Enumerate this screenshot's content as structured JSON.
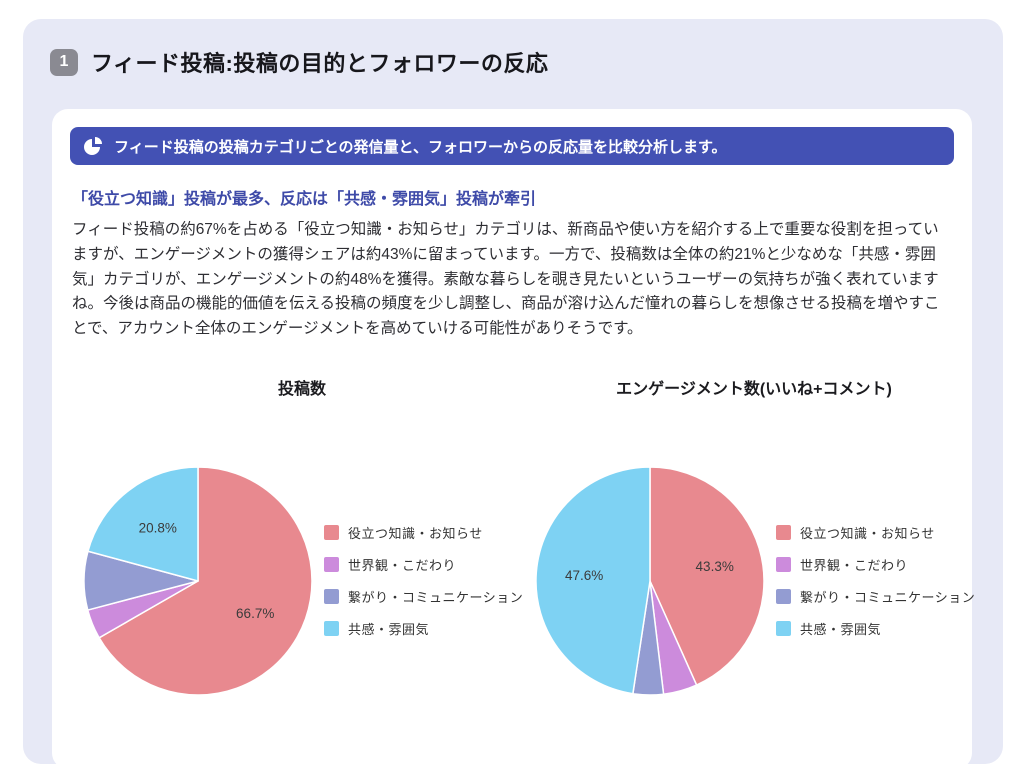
{
  "section": {
    "number": "1",
    "title": "フィード投稿:投稿の目的とフォロワーの反応",
    "panel_bg": "#E7E9F6",
    "badge_bg": "#8A8A92"
  },
  "banner": {
    "icon": "pie-chart-icon",
    "text": "フィード投稿の投稿カテゴリごとの発信量と、フォロワーからの反応量を比較分析します。",
    "bg": "#4351B4",
    "text_color": "#FFFFFF"
  },
  "analysis": {
    "headline": "「役立つ知識」投稿が最多、反応は「共感・雰囲気」投稿が牽引",
    "headline_color": "#3E4AA8",
    "body": "フィード投稿の約67%を占める「役立つ知識・お知らせ」カテゴリは、新商品や使い方を紹介する上で重要な役割を担っていますが、エンゲージメントの獲得シェアは約43%に留まっています。一方で、投稿数は全体の約21%と少なめな「共感・雰囲気」カテゴリが、エンゲージメントの約48%を獲得。素敵な暮らしを覗き見たいというユーザーの気持ちが強く表れていますね。今後は商品の機能的価値を伝える投稿の頻度を少し調整し、商品が溶け込んだ憧れの暮らしを想像させる投稿を増やすことで、アカウント全体のエンゲージメントを高めていける可能性がありそうです。"
  },
  "chart_data": [
    {
      "type": "pie",
      "title": "投稿数",
      "categories": [
        "役立つ知識・お知らせ",
        "世界観・こだわり",
        "繋がり・コミュニケーション",
        "共感・雰囲気"
      ],
      "values": [
        66.7,
        4.2,
        8.3,
        20.8
      ],
      "colors": [
        "#E8898F",
        "#CC8BDC",
        "#939CD2",
        "#7ED2F3"
      ],
      "shown_labels": [
        "66.7%",
        "20.8%"
      ],
      "min_pct_for_label": 10,
      "start_angle": "12-oclock",
      "direction": "clockwise",
      "legend_position": "right"
    },
    {
      "type": "pie",
      "title": "エンゲージメント数(いいね+コメント)",
      "categories": [
        "役立つ知識・お知らせ",
        "世界観・こだわり",
        "繋がり・コミュニケーション",
        "共感・雰囲気"
      ],
      "values": [
        43.3,
        4.8,
        4.3,
        47.6
      ],
      "colors": [
        "#E8898F",
        "#CC8BDC",
        "#939CD2",
        "#7ED2F3"
      ],
      "shown_labels": [
        "43.3%",
        "47.6%"
      ],
      "min_pct_for_label": 10,
      "start_angle": "12-oclock",
      "direction": "clockwise",
      "legend_position": "right"
    }
  ]
}
